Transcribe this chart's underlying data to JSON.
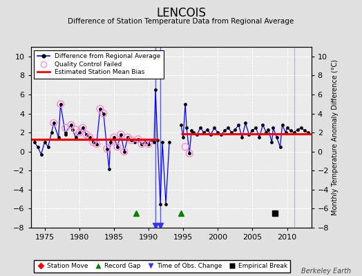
{
  "title": "LENCOIS",
  "subtitle": "Difference of Station Temperature Data from Regional Average",
  "ylabel_right": "Monthly Temperature Anomaly Difference (°C)",
  "xlim": [
    1973.0,
    2013.5
  ],
  "ylim": [
    -8,
    11
  ],
  "yticks": [
    -8,
    -6,
    -4,
    -2,
    0,
    2,
    4,
    6,
    8,
    10
  ],
  "xticks": [
    1975,
    1980,
    1985,
    1990,
    1995,
    2000,
    2005,
    2010
  ],
  "bg_color": "#e0e0e0",
  "plot_bg_color": "#ebebeb",
  "grid_color": "#ffffff",
  "watermark": "Berkeley Earth",
  "bias_segments": [
    {
      "x_start": 1973.0,
      "x_end": 1991.3,
      "y": 1.3
    },
    {
      "x_start": 1994.7,
      "x_end": 2013.5,
      "y": 1.85
    }
  ],
  "record_gaps": [
    1988.2,
    1994.7
  ],
  "obs_changes": [
    1991.0,
    1991.7
  ],
  "empirical_breaks": [
    2008.3
  ],
  "vertical_line_x": 2011.0,
  "qc_failed_x": [
    1976.3,
    1977.3,
    1978.0,
    1978.8,
    1979.5,
    1980.0,
    1980.5,
    1981.0,
    1981.5,
    1982.0,
    1982.5,
    1983.0,
    1983.5,
    1984.0,
    1984.5,
    1985.0,
    1985.5,
    1986.0,
    1986.5,
    1987.0,
    1987.5,
    1988.5,
    1989.0,
    1989.5,
    1990.0,
    1995.3,
    1995.9
  ],
  "qc_failed_y": [
    3.0,
    5.0,
    2.5,
    2.8,
    2.3,
    2.0,
    2.5,
    1.8,
    1.5,
    1.0,
    0.8,
    4.5,
    4.0,
    0.3,
    1.0,
    1.5,
    0.5,
    1.8,
    0.0,
    1.5,
    1.2,
    1.3,
    0.8,
    1.0,
    0.8,
    0.5,
    -0.2
  ],
  "seg1_x": [
    1973.5,
    1974.0,
    1974.5,
    1975.0,
    1975.5,
    1976.0,
    1976.3,
    1977.0,
    1977.3,
    1978.0,
    1978.0,
    1978.8,
    1979.0,
    1979.5,
    1980.0,
    1980.5,
    1981.0,
    1981.5,
    1982.0,
    1982.5,
    1983.0,
    1983.5,
    1984.0,
    1984.3,
    1984.5,
    1985.0,
    1985.5,
    1986.0,
    1986.5,
    1987.0,
    1987.5,
    1988.0,
    1988.5,
    1989.0,
    1989.5,
    1990.0,
    1990.3,
    1990.8,
    1991.0,
    1991.3,
    1991.7,
    1992.0,
    1992.5,
    1993.0
  ],
  "seg1_y": [
    1.0,
    0.5,
    -0.3,
    1.0,
    0.5,
    2.0,
    3.0,
    1.5,
    5.0,
    1.8,
    2.0,
    2.8,
    2.3,
    1.5,
    2.0,
    2.5,
    1.8,
    1.5,
    1.0,
    0.8,
    4.5,
    4.0,
    0.3,
    -1.8,
    1.0,
    1.5,
    0.5,
    1.8,
    0.0,
    1.5,
    1.2,
    1.0,
    1.3,
    0.8,
    1.0,
    0.8,
    1.2,
    1.0,
    6.5,
    1.2,
    -5.5,
    1.0,
    -5.5,
    1.0
  ],
  "seg2_x": [
    1994.7,
    1995.0,
    1995.3,
    1995.5,
    1995.9,
    1996.2,
    1996.5,
    1997.0,
    1997.5,
    1998.0,
    1998.5,
    1999.0,
    1999.5,
    2000.0,
    2000.5,
    2001.0,
    2001.5,
    2002.0,
    2002.5,
    2003.0,
    2003.5,
    2004.0,
    2004.5,
    2005.0,
    2005.5,
    2006.0,
    2006.5,
    2007.0,
    2007.3,
    2007.8,
    2008.0,
    2008.5,
    2009.0,
    2009.3,
    2009.8,
    2010.0,
    2010.5,
    2011.0,
    2011.5,
    2012.0,
    2012.5,
    2013.0
  ],
  "seg2_y": [
    2.8,
    1.5,
    5.0,
    2.5,
    -0.2,
    2.2,
    2.0,
    1.8,
    2.5,
    2.0,
    2.3,
    1.8,
    2.5,
    2.0,
    1.8,
    2.2,
    2.5,
    2.0,
    2.3,
    2.8,
    1.5,
    3.0,
    1.8,
    2.2,
    2.5,
    1.5,
    2.8,
    2.0,
    2.3,
    1.0,
    2.5,
    1.5,
    0.5,
    2.8,
    2.0,
    2.5,
    2.2,
    2.0,
    2.3,
    2.5,
    2.2,
    2.0
  ]
}
